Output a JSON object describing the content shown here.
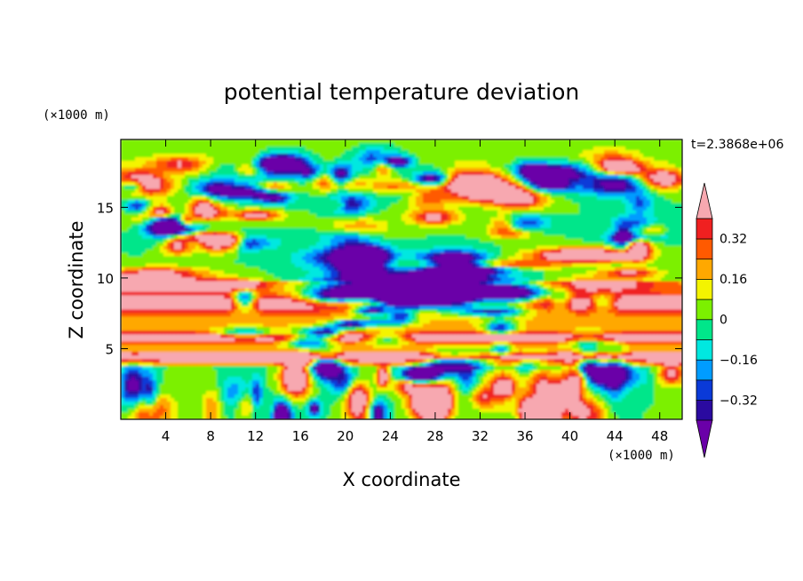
{
  "chart_data": {
    "type": "heatmap",
    "title": "potential temperature deviation",
    "xlabel": "X coordinate",
    "ylabel": "Z coordinate",
    "x_unit": "(×1000 m)",
    "y_unit": "(×1000 m)",
    "time_label": "t=2.3868e+06",
    "xlim": [
      0,
      50
    ],
    "ylim": [
      0,
      19.8
    ],
    "x_ticks": [
      4,
      8,
      12,
      16,
      20,
      24,
      28,
      32,
      36,
      40,
      44,
      48
    ],
    "y_ticks": [
      5,
      10,
      15
    ],
    "x_tick_labels": [
      "4",
      "8",
      "12",
      "16",
      "20",
      "24",
      "28",
      "32",
      "36",
      "40",
      "44",
      "48"
    ],
    "y_tick_labels": [
      "5",
      "10",
      "15"
    ],
    "colorbar": {
      "levels": [
        -0.4,
        -0.32,
        -0.24,
        -0.16,
        -0.08,
        0,
        0.08,
        0.16,
        0.24,
        0.32,
        0.4
      ],
      "labels": [
        "0.32",
        "0.16",
        "0",
        "−0.16",
        "−0.32"
      ],
      "label_values": [
        0.32,
        0.16,
        0,
        -0.16,
        -0.32
      ],
      "colors": [
        "#6a00a8",
        "#2a0aa0",
        "#0a3ad8",
        "#009cff",
        "#00e8e0",
        "#00e68a",
        "#7cf000",
        "#f4f400",
        "#ffa800",
        "#ff5a00",
        "#f02020",
        "#f7a8b0"
      ]
    }
  }
}
